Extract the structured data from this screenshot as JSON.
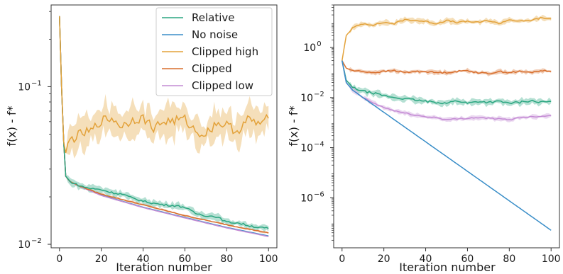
{
  "chart_data": [
    {
      "type": "line",
      "yscale": "log",
      "title": "",
      "xlabel": "Iteration number",
      "ylabel": "f(x) - f*",
      "xlim": [
        -4,
        104
      ],
      "ylim": [
        0.0095,
        0.33
      ],
      "x_ticks": [
        0,
        20,
        40,
        60,
        80,
        100
      ],
      "y_ticks": [
        {
          "value": 0.1,
          "base": "10",
          "exp": "−1"
        },
        {
          "value": 0.01,
          "base": "10",
          "exp": "−2"
        }
      ],
      "legend": {
        "position": "upper-right",
        "entries": [
          "Relative",
          "No noise",
          "Clipped high",
          "Clipped",
          "Clipped low"
        ]
      },
      "series": [
        {
          "name": "No noise",
          "color": "#3a8ec8",
          "x": [
            0,
            1,
            2,
            3,
            5,
            10,
            20,
            40,
            60,
            80,
            100
          ],
          "y": [
            0.28,
            0.1,
            0.045,
            0.027,
            0.025,
            0.0232,
            0.0205,
            0.0172,
            0.0148,
            0.0128,
            0.0113
          ]
        },
        {
          "name": "Clipped low",
          "color": "#c48bd4",
          "x": [
            0,
            1,
            2,
            3,
            5,
            10,
            20,
            40,
            60,
            80,
            100
          ],
          "y": [
            0.28,
            0.1,
            0.045,
            0.027,
            0.025,
            0.0232,
            0.0204,
            0.0171,
            0.0147,
            0.0127,
            0.0112
          ]
        },
        {
          "name": "Clipped",
          "color": "#d86f2d",
          "x": [
            0,
            1,
            2,
            3,
            5,
            10,
            20,
            40,
            60,
            80,
            100
          ],
          "y": [
            0.28,
            0.1,
            0.045,
            0.027,
            0.025,
            0.0233,
            0.0208,
            0.0178,
            0.0152,
            0.0133,
            0.0118
          ]
        },
        {
          "name": "Relative",
          "color": "#2aa680",
          "x": [
            0,
            1,
            2,
            3,
            5,
            10,
            15,
            20,
            25,
            30,
            35,
            40,
            45,
            50,
            55,
            60,
            65,
            70,
            75,
            80,
            85,
            90,
            95,
            100
          ],
          "y": [
            0.28,
            0.1,
            0.045,
            0.027,
            0.025,
            0.0234,
            0.0226,
            0.0222,
            0.0213,
            0.0208,
            0.0196,
            0.0188,
            0.0182,
            0.0178,
            0.0176,
            0.0172,
            0.0157,
            0.0152,
            0.015,
            0.0138,
            0.0137,
            0.0132,
            0.0128,
            0.0126
          ]
        },
        {
          "name": "Clipped high",
          "color": "#e3a23a",
          "x": [
            0,
            1,
            2,
            3,
            5,
            8,
            10,
            15,
            20,
            25,
            30,
            35,
            40,
            45,
            50,
            55,
            60,
            65,
            70,
            75,
            80,
            85,
            90,
            95,
            100
          ],
          "y": [
            0.28,
            0.1,
            0.045,
            0.038,
            0.046,
            0.048,
            0.05,
            0.052,
            0.061,
            0.063,
            0.056,
            0.062,
            0.063,
            0.055,
            0.06,
            0.061,
            0.062,
            0.052,
            0.05,
            0.059,
            0.057,
            0.052,
            0.062,
            0.058,
            0.063
          ]
        }
      ]
    },
    {
      "type": "line",
      "yscale": "log",
      "title": "",
      "xlabel": "Iteration number",
      "ylabel": "f(x) - f*",
      "xlim": [
        -4,
        104
      ],
      "ylim": [
        1e-08,
        50
      ],
      "x_ticks": [
        0,
        20,
        40,
        60,
        80,
        100
      ],
      "y_ticks": [
        {
          "value": 1,
          "base": "10",
          "exp": "0"
        },
        {
          "value": 0.01,
          "base": "10",
          "exp": "−2"
        },
        {
          "value": 0.0001,
          "base": "10",
          "exp": "−4"
        },
        {
          "value": 1e-06,
          "base": "10",
          "exp": "−6"
        }
      ],
      "series": [
        {
          "name": "Clipped high",
          "color": "#e3a23a",
          "x": [
            0,
            2,
            5,
            10,
            15,
            20,
            25,
            30,
            35,
            40,
            45,
            50,
            55,
            60,
            65,
            70,
            75,
            80,
            85,
            90,
            95,
            100
          ],
          "y": [
            0.3,
            3,
            6,
            9,
            8,
            10,
            9,
            13,
            12,
            11,
            9,
            12,
            10,
            11,
            10,
            12,
            9,
            13,
            11,
            12,
            15,
            14
          ]
        },
        {
          "name": "Clipped",
          "color": "#d86f2d",
          "x": [
            0,
            2,
            5,
            10,
            15,
            20,
            25,
            30,
            35,
            40,
            45,
            50,
            55,
            60,
            65,
            70,
            75,
            80,
            85,
            90,
            95,
            100
          ],
          "y": [
            0.3,
            0.15,
            0.12,
            0.11,
            0.1,
            0.11,
            0.12,
            0.1,
            0.11,
            0.11,
            0.1,
            0.1,
            0.11,
            0.12,
            0.1,
            0.09,
            0.11,
            0.1,
            0.11,
            0.1,
            0.12,
            0.11
          ]
        },
        {
          "name": "Relative",
          "color": "#2aa680",
          "x": [
            0,
            2,
            5,
            10,
            15,
            20,
            25,
            30,
            35,
            40,
            45,
            50,
            55,
            60,
            65,
            70,
            75,
            80,
            85,
            90,
            95,
            100
          ],
          "y": [
            0.3,
            0.05,
            0.025,
            0.018,
            0.015,
            0.012,
            0.01,
            0.009,
            0.008,
            0.007,
            0.0065,
            0.006,
            0.0075,
            0.006,
            0.007,
            0.0065,
            0.007,
            0.006,
            0.0065,
            0.0075,
            0.0065,
            0.007
          ]
        },
        {
          "name": "Clipped low",
          "color": "#c48bd4",
          "x": [
            0,
            2,
            5,
            10,
            15,
            20,
            25,
            30,
            35,
            40,
            45,
            50,
            55,
            60,
            65,
            70,
            75,
            80,
            85,
            90,
            95,
            100
          ],
          "y": [
            0.3,
            0.04,
            0.02,
            0.01,
            0.006,
            0.004,
            0.003,
            0.0024,
            0.002,
            0.0017,
            0.0016,
            0.0013,
            0.0014,
            0.0015,
            0.0016,
            0.0015,
            0.0014,
            0.0013,
            0.0016,
            0.0017,
            0.0018,
            0.0019
          ]
        },
        {
          "name": "No noise",
          "color": "#3a8ec8",
          "x": [
            0,
            2,
            5,
            10,
            100
          ],
          "y": [
            0.3,
            0.04,
            0.02,
            0.01,
            5e-08
          ]
        }
      ]
    }
  ]
}
